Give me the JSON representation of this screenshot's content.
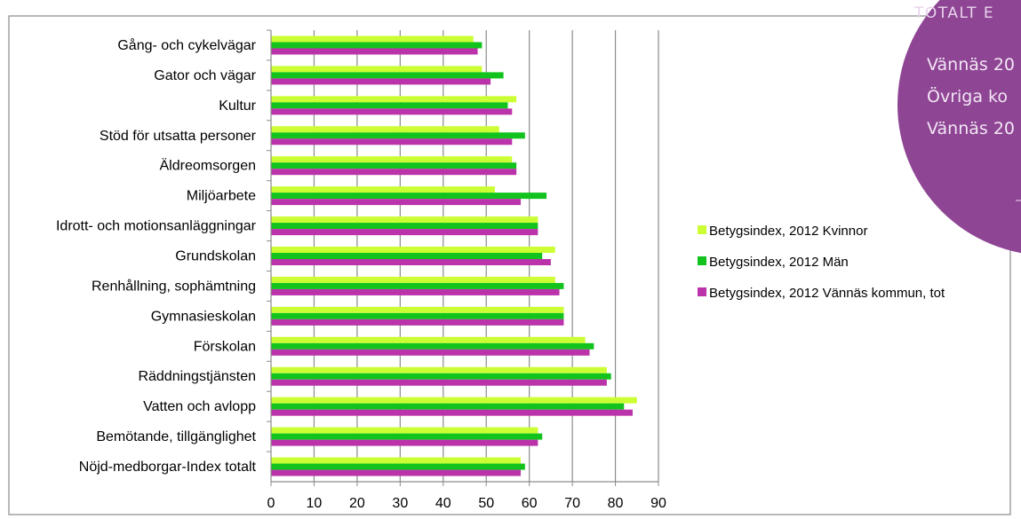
{
  "chart_data": {
    "type": "bar",
    "orientation": "horizontal",
    "categories": [
      "Gång- och cykelvägar",
      "Gator och vägar",
      "Kultur",
      "Stöd för utsatta personer",
      "Äldreomsorgen",
      "Miljöarbete",
      "Idrott- och motionsanläggningar",
      "Grundskolan",
      "Renhållning, sophämtning",
      "Gymnasieskolan",
      "Förskolan",
      "Räddningstjänsten",
      "Vatten och avlopp",
      "Bemötande, tillgänglighet",
      "Nöjd-medborgar-Index totalt"
    ],
    "series": [
      {
        "name": "Betygsindex, 2012 Kvinnor",
        "color": "#ccff33",
        "values": [
          47,
          49,
          57,
          53,
          56,
          52,
          62,
          66,
          66,
          68,
          73,
          78,
          85,
          62,
          58
        ]
      },
      {
        "name": "Betygsindex, 2012 Män",
        "color": "#12c31e",
        "values": [
          49,
          54,
          55,
          59,
          57,
          64,
          62,
          63,
          68,
          68,
          75,
          79,
          82,
          63,
          59
        ]
      },
      {
        "name": "Betygsindex, 2012 Vännäs kommun, tot",
        "color": "#bb33aa",
        "values": [
          48,
          51,
          56,
          56,
          57,
          58,
          62,
          65,
          67,
          68,
          74,
          78,
          84,
          62,
          58
        ]
      }
    ],
    "xlim": [
      0,
      90
    ],
    "ticks": [
      "0",
      "10",
      "20",
      "30",
      "40",
      "50",
      "60",
      "70",
      "80",
      "90"
    ],
    "grid": true,
    "legend_position": "right",
    "title": "",
    "xlabel": "",
    "ylabel": ""
  },
  "callout": {
    "heading": "TOTALT E",
    "lines": [
      "Vännäs 20",
      "Övriga ko",
      "Vännäs 20"
    ],
    "color": "#8e4594"
  }
}
